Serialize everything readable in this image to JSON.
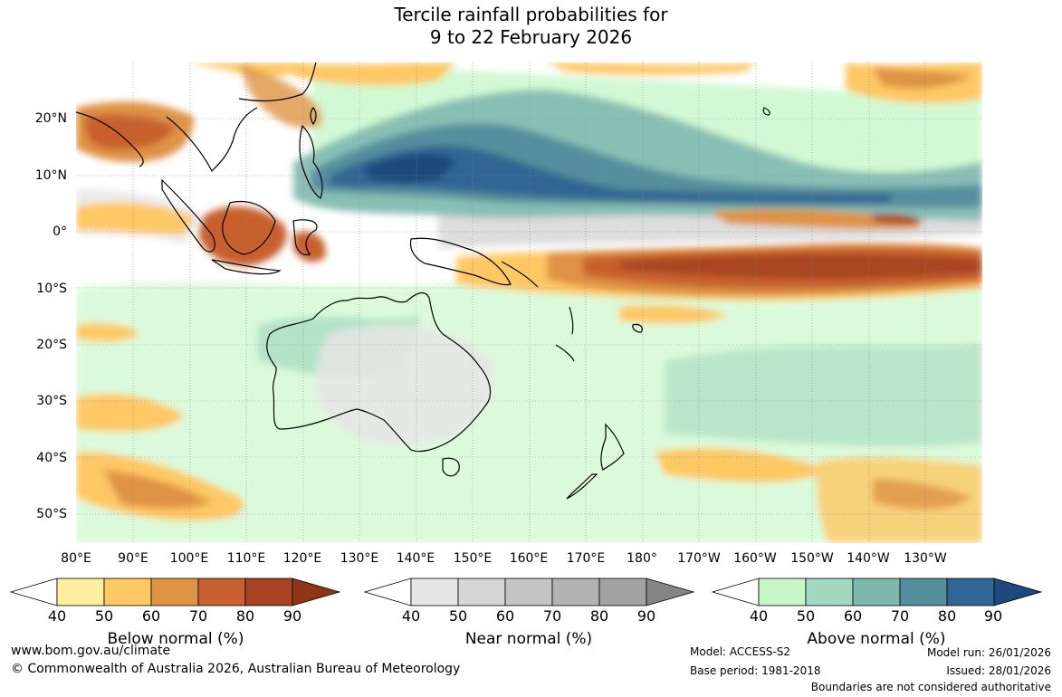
{
  "title": {
    "line1": "Tercile rainfall probabilities for",
    "line2": "9 to 22 February 2026"
  },
  "lat_labels": [
    "20°N",
    "10°N",
    "0°",
    "10°S",
    "20°S",
    "30°S",
    "40°S",
    "50°S"
  ],
  "lon_labels": [
    "80°E",
    "90°E",
    "100°E",
    "110°E",
    "120°E",
    "130°E",
    "140°E",
    "150°E",
    "160°E",
    "170°E",
    "180°",
    "170°W",
    "160°W",
    "150°W",
    "140°W",
    "130°W"
  ],
  "legends": [
    {
      "label": "Below normal (%)",
      "ticks": [
        "40",
        "50",
        "60",
        "70",
        "80",
        "90"
      ],
      "colors": [
        "#ffeda0",
        "#fec865",
        "#df9345",
        "#c8612f",
        "#a84422",
        "#8e3516"
      ]
    },
    {
      "label": "Near normal (%)",
      "ticks": [
        "40",
        "50",
        "60",
        "70",
        "80",
        "90"
      ],
      "colors": [
        "#e6e6e6",
        "#d5d5d5",
        "#c4c4c4",
        "#b3b3b3",
        "#a2a2a2",
        "#858585"
      ]
    },
    {
      "label": "Above normal (%)",
      "ticks": [
        "40",
        "50",
        "60",
        "70",
        "80",
        "90"
      ],
      "colors": [
        "#c7f7c8",
        "#a2d9be",
        "#80b8b0",
        "#568e9d",
        "#316593",
        "#1d4a7e"
      ]
    }
  ],
  "footer": {
    "website": "www.bom.gov.au/climate",
    "copyright": "© Commonwealth of Australia 2026, Australian Bureau of Meteorology",
    "model": "Model: ACCESS-S2",
    "base_period": "Base period: 1981-2018",
    "model_run": "Model run: 26/01/2026",
    "issued": "Issued: 28/01/2026",
    "disclaimer": "Boundaries are not considered authoritative"
  }
}
